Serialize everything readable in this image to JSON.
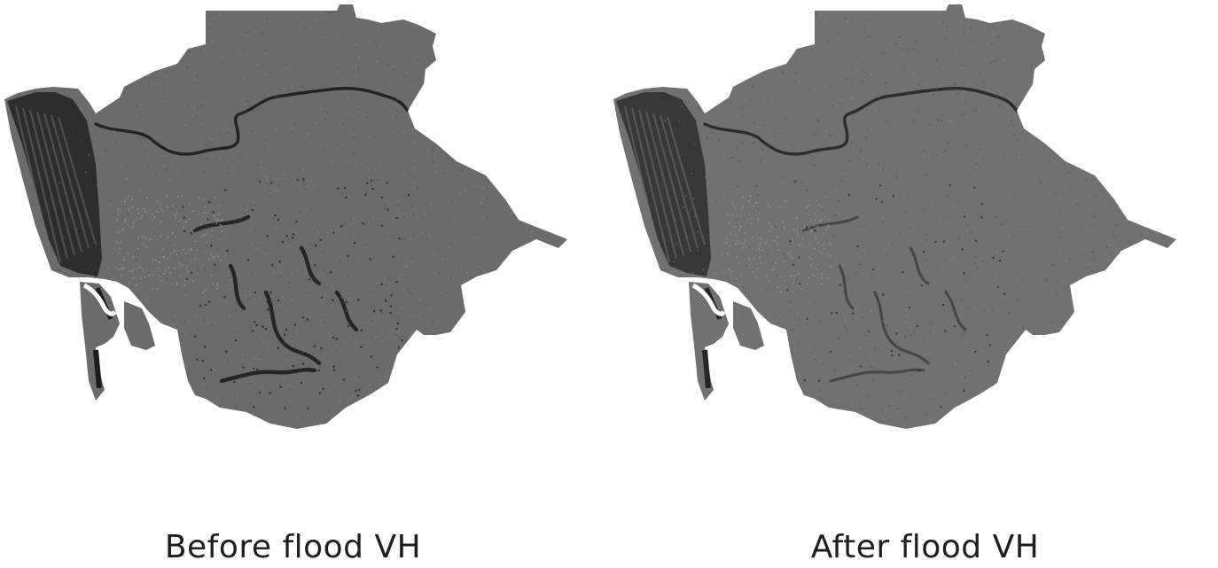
{
  "figure": {
    "panels": [
      {
        "caption": "Before flood VH",
        "map": {
          "land_color": "#6b6b6b",
          "coast_shadow_color": "#1c1c1c",
          "water_color": "#222222",
          "urban_speckle_color": "#9a9a9a",
          "flood_water_level": 1.0
        }
      },
      {
        "caption": "After flood VH",
        "map": {
          "land_color": "#717171",
          "coast_shadow_color": "#262626",
          "water_color": "#2c2c2c",
          "urban_speckle_color": "#9a9a9a",
          "flood_water_level": 0.45
        }
      }
    ]
  }
}
